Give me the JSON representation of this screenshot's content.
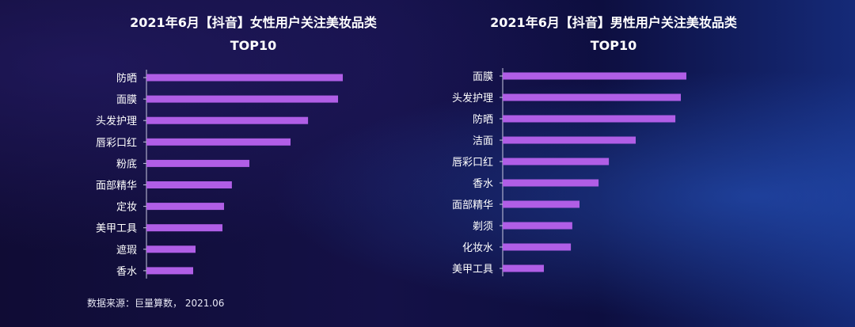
{
  "chart_data": [
    {
      "type": "bar",
      "orientation": "horizontal",
      "title": "2021年6月【抖音】女性用户关注美妆品类",
      "subtitle": "TOP10",
      "categories": [
        "防晒",
        "面膜",
        "头发护理",
        "唇彩口红",
        "粉底",
        "面部精华",
        "定妆",
        "美甲工具",
        "遮瑕",
        "香水"
      ],
      "values": [
        100,
        97.6,
        82.3,
        73.4,
        52.4,
        43.5,
        39.5,
        38.7,
        25.0,
        23.8
      ],
      "xlim": [
        0,
        100
      ],
      "grid": false,
      "bar_color": "#b05ee6"
    },
    {
      "type": "bar",
      "orientation": "horizontal",
      "title": "2021年6月【抖音】男性用户关注美妆品类",
      "subtitle": "TOP10",
      "categories": [
        "面膜",
        "头发护理",
        "防晒",
        "洁面",
        "唇彩口红",
        "香水",
        "面部精华",
        "剃须",
        "化妆水",
        "美甲工具"
      ],
      "values": [
        100,
        97.0,
        94.0,
        72.4,
        57.8,
        52.2,
        41.8,
        37.9,
        37.1,
        22.4
      ],
      "xlim": [
        0,
        100
      ],
      "grid": false,
      "bar_color": "#b05ee6"
    }
  ],
  "source_note": "数据来源：巨量算数， 2021.06"
}
